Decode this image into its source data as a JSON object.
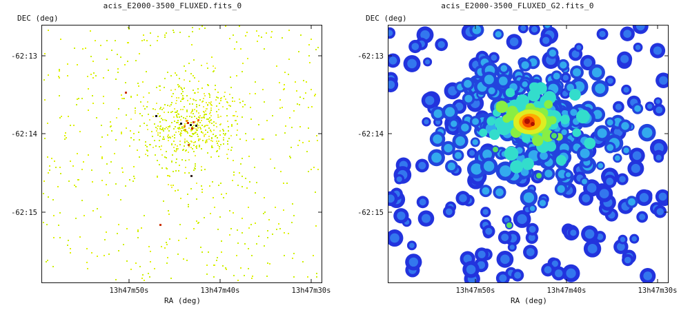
{
  "chart_data": [
    {
      "type": "heatmap",
      "title": "acis_E2000-3500_FLUXED.fits_0",
      "xlabel": "RA (deg)",
      "ylabel": "DEC (deg)",
      "xticks": [
        "13h47m50s",
        "13h47m40s",
        "13h47m30s"
      ],
      "yticks": [
        "-62:13",
        "-62:14",
        "-62:15"
      ],
      "colormap": "sparse yellow-green counts with red/black bright pixels",
      "source_center": {
        "ra": "13h47m43s",
        "dec": "-62:13:51"
      }
    },
    {
      "type": "heatmap",
      "title": "acis_E2000-3500_FLUXED_G2.fits_0",
      "xlabel": "RA (deg)",
      "ylabel": "DEC (deg)",
      "xticks": [
        "13h47m50s",
        "13h47m40s",
        "13h47m30s"
      ],
      "yticks": [
        "-62:13",
        "-62:14",
        "-62:15"
      ],
      "colormap": "rainbow (blue low → red high) on white background",
      "source_center": {
        "ra": "13h47m43s",
        "dec": "-62:13:51"
      }
    }
  ],
  "colors": {
    "low": "#2233dd",
    "mid": "#22ddcc",
    "high": "#ffee00",
    "peak": "#cc1100",
    "sparse": "#ccee00"
  }
}
